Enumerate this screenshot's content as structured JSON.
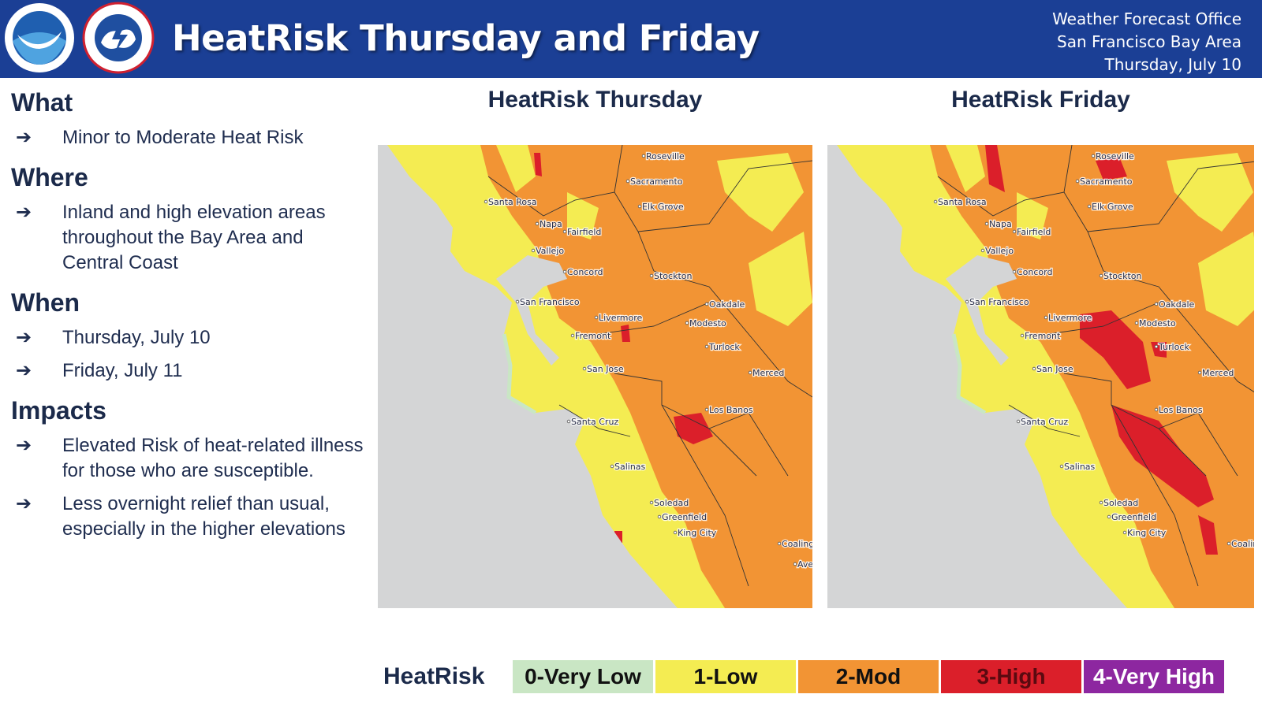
{
  "header": {
    "title": "HeatRisk Thursday and Friday",
    "office": [
      "Weather Forecast Office",
      "San Francisco Bay Area",
      "Thursday, July 10"
    ]
  },
  "sections": [
    {
      "heading": "What",
      "items": [
        "Minor to Moderate Heat Risk"
      ]
    },
    {
      "heading": "Where",
      "items": [
        "Inland and high elevation areas throughout the Bay Area and Central Coast"
      ]
    },
    {
      "heading": "When",
      "items": [
        "Thursday, July 10",
        "Friday, July 11"
      ]
    },
    {
      "heading": "Impacts",
      "items": [
        "Elevated Risk of heat-related illness for those who are susceptible.",
        "Less overnight relief than usual, especially in the higher elevations"
      ]
    }
  ],
  "maps": [
    {
      "title": "HeatRisk Thursday",
      "cities": [
        "Roseville",
        "Sacramento",
        "Elk Grove",
        "Santa Rosa",
        "Napa",
        "Fairfield",
        "Vallejo",
        "Concord",
        "Stockton",
        "San Francisco",
        "Oakdale",
        "Livermore",
        "Modesto",
        "Fremont",
        "Turlock",
        "San Jose",
        "Merced",
        "Santa Cruz",
        "Los Banos",
        "Salinas",
        "Soledad",
        "Greenfield",
        "King City",
        "Coalinga",
        "Ave"
      ]
    },
    {
      "title": "HeatRisk Friday",
      "cities": [
        "Roseville",
        "Sacramento",
        "Elk Grove",
        "Santa Rosa",
        "Napa",
        "Fairfield",
        "Vallejo",
        "Concord",
        "Stockton",
        "San Francisco",
        "Oakdale",
        "Livermore",
        "Modesto",
        "Fremont",
        "Turlock",
        "San Jose",
        "Merced",
        "Santa Cruz",
        "Los Banos",
        "Salinas",
        "Soledad",
        "Greenfield",
        "King City",
        "Coalin"
      ]
    }
  ],
  "legend": {
    "title": "HeatRisk",
    "levels": [
      {
        "label": "0-Very Low",
        "color": "#c9e6c4"
      },
      {
        "label": "1-Low",
        "color": "#f4ec52"
      },
      {
        "label": "2-Mod",
        "color": "#f29434"
      },
      {
        "label": "3-High",
        "color": "#db1f2a"
      },
      {
        "label": "4-Very High",
        "color": "#8d27a0"
      }
    ]
  }
}
